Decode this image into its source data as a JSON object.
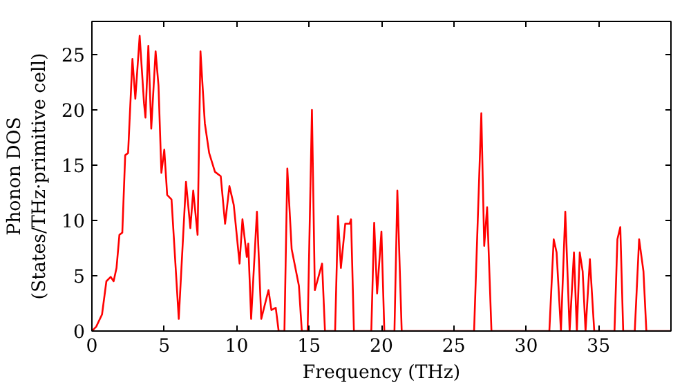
{
  "chart_data": {
    "type": "line",
    "xlabel": "Frequency (THz)",
    "ylabel": "Phonon DOS\n(States/THz·primitive cell)",
    "xlim": [
      0,
      40
    ],
    "ylim": [
      0,
      28
    ],
    "xticks": [
      0,
      5,
      10,
      15,
      20,
      25,
      30,
      35
    ],
    "yticks": [
      0,
      5,
      10,
      15,
      20,
      25
    ],
    "grid": false,
    "marker": "none",
    "line_style": "solid",
    "series": [
      {
        "color": "#ff0000",
        "x": [
          0,
          0.3,
          0.7,
          1.0,
          1.3,
          1.5,
          1.7,
          1.9,
          2.1,
          2.3,
          2.5,
          2.8,
          3.0,
          3.3,
          3.6,
          3.7,
          3.9,
          4.1,
          4.4,
          4.6,
          4.8,
          5.0,
          5.2,
          5.5,
          6.0,
          6.5,
          6.8,
          7.0,
          7.3,
          7.5,
          7.8,
          8.1,
          8.5,
          8.9,
          9.2,
          9.5,
          9.8,
          10.2,
          10.4,
          10.7,
          10.8,
          11.0,
          11.4,
          11.7,
          12.2,
          12.4,
          12.7,
          12.9,
          13.3,
          13.5,
          13.8,
          14.3,
          14.5,
          14.9,
          15.2,
          15.4,
          15.9,
          16.1,
          16.8,
          17.0,
          17.2,
          17.5,
          17.8,
          17.9,
          18.1,
          19.3,
          19.5,
          19.7,
          20.0,
          20.2,
          20.9,
          21.1,
          21.4,
          26.4,
          26.9,
          27.1,
          27.3,
          27.6,
          31.6,
          31.9,
          32.1,
          32.4,
          32.7,
          33.0,
          33.3,
          33.5,
          33.7,
          33.9,
          34.1,
          34.4,
          34.7,
          36.1,
          36.3,
          36.5,
          36.7,
          37.5,
          37.8,
          38.1,
          38.3,
          40
        ],
        "values": [
          0,
          0.4,
          1.5,
          4.5,
          4.9,
          4.5,
          5.7,
          8.7,
          8.9,
          15.9,
          16.1,
          24.6,
          21,
          26.7,
          20.6,
          19.3,
          25.8,
          18.3,
          25.3,
          22.2,
          14.3,
          16.4,
          12.3,
          11.9,
          1.1,
          13.5,
          9.3,
          12.7,
          8.7,
          25.3,
          18.8,
          16.1,
          14.4,
          14,
          9.7,
          13.1,
          11.4,
          6.1,
          10.1,
          6.7,
          7.9,
          1.1,
          10.8,
          1.1,
          3.7,
          1.9,
          2.1,
          0,
          0,
          14.7,
          7.4,
          4.1,
          0,
          0,
          20,
          3.7,
          6.1,
          0,
          0,
          10.4,
          5.7,
          9.7,
          9.7,
          10.1,
          0,
          0,
          9.8,
          3.4,
          9,
          0,
          0,
          12.7,
          0,
          0,
          19.7,
          7.7,
          11.2,
          0,
          0,
          8.3,
          7.1,
          0,
          10.8,
          0,
          7.1,
          0,
          7.1,
          5.4,
          0,
          6.5,
          0,
          0,
          8.3,
          9.4,
          0,
          0,
          8.3,
          5.4,
          0,
          0
        ]
      }
    ]
  }
}
